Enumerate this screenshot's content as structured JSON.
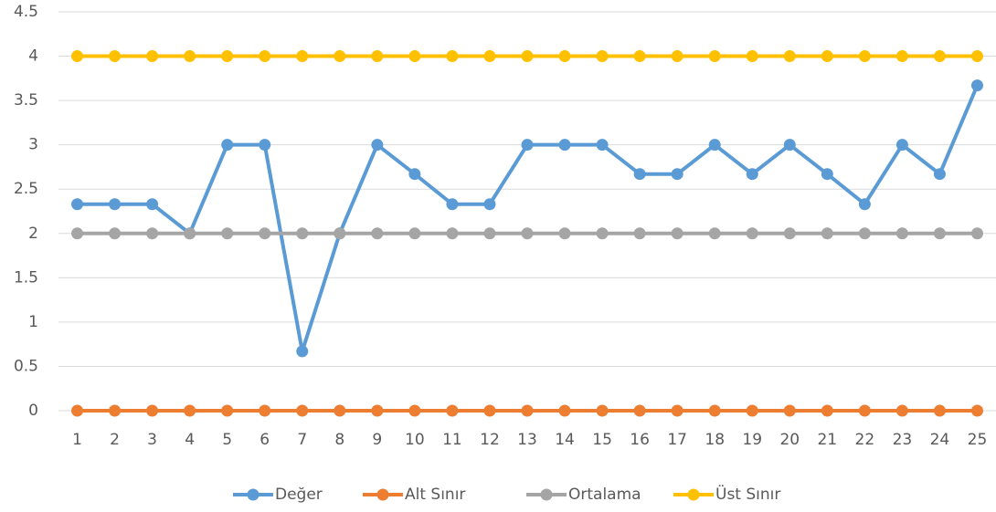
{
  "chart_data": {
    "type": "line",
    "categories": [
      "1",
      "2",
      "3",
      "4",
      "5",
      "6",
      "7",
      "8",
      "9",
      "10",
      "11",
      "12",
      "13",
      "14",
      "15",
      "16",
      "17",
      "18",
      "19",
      "20",
      "21",
      "22",
      "23",
      "24",
      "25"
    ],
    "series": [
      {
        "name": "Değer",
        "color": "#5b9bd5",
        "values": [
          2.33,
          2.33,
          2.33,
          2,
          3,
          3,
          0.67,
          2,
          3,
          2.67,
          2.33,
          2.33,
          3,
          3,
          3,
          2.67,
          2.67,
          3,
          2.67,
          3,
          2.67,
          2.33,
          3,
          2.67,
          3.67
        ]
      },
      {
        "name": "Alt Sınır",
        "color": "#ed7d31",
        "values": [
          0,
          0,
          0,
          0,
          0,
          0,
          0,
          0,
          0,
          0,
          0,
          0,
          0,
          0,
          0,
          0,
          0,
          0,
          0,
          0,
          0,
          0,
          0,
          0,
          0
        ]
      },
      {
        "name": "Ortalama",
        "color": "#a5a5a5",
        "values": [
          2,
          2,
          2,
          2,
          2,
          2,
          2,
          2,
          2,
          2,
          2,
          2,
          2,
          2,
          2,
          2,
          2,
          2,
          2,
          2,
          2,
          2,
          2,
          2,
          2
        ]
      },
      {
        "name": "Üst Sınır",
        "color": "#ffc000",
        "values": [
          4,
          4,
          4,
          4,
          4,
          4,
          4,
          4,
          4,
          4,
          4,
          4,
          4,
          4,
          4,
          4,
          4,
          4,
          4,
          4,
          4,
          4,
          4,
          4,
          4
        ]
      }
    ],
    "ylim": [
      0,
      4.5
    ],
    "yticks": [
      0,
      0.5,
      1,
      1.5,
      2,
      2.5,
      3,
      3.5,
      4,
      4.5
    ],
    "grid": true,
    "legend": "bottom"
  }
}
